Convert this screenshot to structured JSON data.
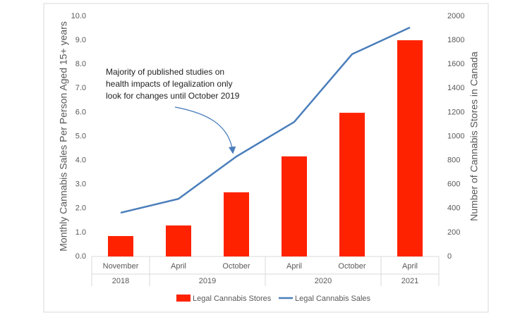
{
  "chart_data": {
    "type": "bar-line",
    "categories": [
      "November",
      "April",
      "October",
      "April",
      "October",
      "April"
    ],
    "x_groups": [
      {
        "label": "2018",
        "size": 1
      },
      {
        "label": "2019",
        "size": 2
      },
      {
        "label": "2020",
        "size": 2
      },
      {
        "label": "2021",
        "size": 1
      }
    ],
    "y_label": "Monthly Cannabis Sales Per Person Aged 15+ years",
    "y2_label": "Number of Cannabis Stores in Canada",
    "ylim": [
      0,
      10
    ],
    "yticks": [
      {
        "value": 0,
        "label": "0.0"
      },
      {
        "value": 1,
        "label": "1.0"
      },
      {
        "value": 2,
        "label": "2.0"
      },
      {
        "value": 3,
        "label": "3.0"
      },
      {
        "value": 4,
        "label": "4.0"
      },
      {
        "value": 5,
        "label": "5.0"
      },
      {
        "value": 6,
        "label": "6.0"
      },
      {
        "value": 7,
        "label": "7.0"
      },
      {
        "value": 8,
        "label": "8.0"
      },
      {
        "value": 9,
        "label": "9.0"
      },
      {
        "value": 10,
        "label": "10.0"
      }
    ],
    "y2lim": [
      0,
      2000
    ],
    "y2ticks": [
      0,
      200,
      400,
      600,
      800,
      1000,
      1200,
      1400,
      1600,
      1800,
      2000
    ],
    "series": [
      {
        "name": "Legal Cannabis Stores",
        "type": "bar",
        "axis": "y2",
        "color": "#ff2200",
        "values": [
          170,
          258,
          534,
          833,
          1196,
          1800
        ]
      },
      {
        "name": "Legal Cannabis Sales",
        "type": "line",
        "axis": "y",
        "color": "#4a7ebb",
        "values": [
          1.82,
          2.4,
          4.16,
          5.6,
          8.42,
          9.53
        ]
      }
    ],
    "annotation": [
      "Majority of published studies on",
      "health impacts of legalization only",
      "look for changes until October 2019"
    ],
    "legend": "bottom"
  }
}
